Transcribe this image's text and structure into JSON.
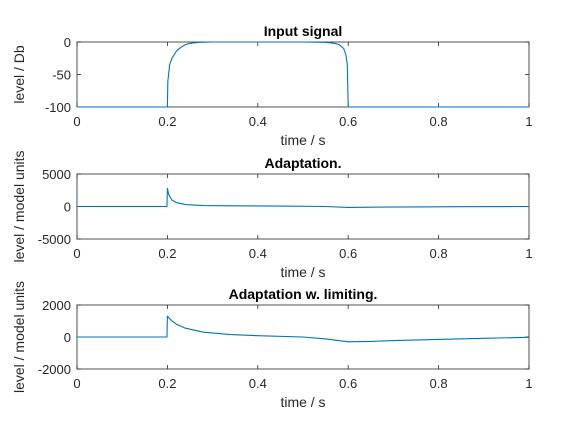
{
  "chart_data": [
    {
      "type": "line",
      "title": "Input signal",
      "xlabel": "time / s",
      "ylabel": "level / Db",
      "xlim": [
        0,
        1
      ],
      "ylim": [
        -100,
        0
      ],
      "xticks": [
        0,
        0.2,
        0.4,
        0.6,
        0.8,
        1
      ],
      "yticks": [
        -100,
        -50,
        0
      ],
      "grid": false,
      "series": [
        {
          "color": "#0072BD",
          "points": [
            [
              0,
              -100
            ],
            [
              0.199,
              -100
            ],
            [
              0.2,
              -100
            ],
            [
              0.201,
              -60
            ],
            [
              0.205,
              -35
            ],
            [
              0.21,
              -25
            ],
            [
              0.22,
              -14
            ],
            [
              0.23,
              -8
            ],
            [
              0.24,
              -4
            ],
            [
              0.25,
              -2
            ],
            [
              0.27,
              -0.5
            ],
            [
              0.3,
              0
            ],
            [
              0.5,
              0
            ],
            [
              0.55,
              -0.5
            ],
            [
              0.57,
              -2
            ],
            [
              0.58,
              -4
            ],
            [
              0.59,
              -10
            ],
            [
              0.595,
              -20
            ],
            [
              0.598,
              -35
            ],
            [
              0.6,
              -100
            ],
            [
              1,
              -100
            ]
          ]
        }
      ]
    },
    {
      "type": "line",
      "title": "Adaptation.",
      "xlabel": "time / s",
      "ylabel": "level / model units",
      "xlim": [
        0,
        1
      ],
      "ylim": [
        -5000,
        5000
      ],
      "xticks": [
        0,
        0.2,
        0.4,
        0.6,
        0.8,
        1
      ],
      "yticks": [
        -5000,
        0,
        5000
      ],
      "grid": false,
      "series": [
        {
          "color": "#0072BD",
          "points": [
            [
              0,
              0
            ],
            [
              0.199,
              0
            ],
            [
              0.2,
              2800
            ],
            [
              0.203,
              1800
            ],
            [
              0.21,
              1000
            ],
            [
              0.22,
              600
            ],
            [
              0.24,
              300
            ],
            [
              0.28,
              150
            ],
            [
              0.35,
              100
            ],
            [
              0.45,
              60
            ],
            [
              0.55,
              0
            ],
            [
              0.6,
              -150
            ],
            [
              0.65,
              -100
            ],
            [
              0.75,
              -60
            ],
            [
              0.85,
              -30
            ],
            [
              1,
              0
            ]
          ]
        }
      ]
    },
    {
      "type": "line",
      "title": "Adaptation w. limiting.",
      "xlabel": "time / s",
      "ylabel": "level / model units",
      "xlim": [
        0,
        1
      ],
      "ylim": [
        -2000,
        2000
      ],
      "xticks": [
        0,
        0.2,
        0.4,
        0.6,
        0.8,
        1
      ],
      "yticks": [
        -2000,
        0,
        2000
      ],
      "grid": false,
      "series": [
        {
          "color": "#0072BD",
          "points": [
            [
              0,
              0
            ],
            [
              0.199,
              0
            ],
            [
              0.2,
              1300
            ],
            [
              0.21,
              1000
            ],
            [
              0.22,
              800
            ],
            [
              0.24,
              550
            ],
            [
              0.28,
              300
            ],
            [
              0.34,
              150
            ],
            [
              0.4,
              80
            ],
            [
              0.5,
              0
            ],
            [
              0.55,
              -120
            ],
            [
              0.6,
              -300
            ],
            [
              0.65,
              -280
            ],
            [
              0.7,
              -220
            ],
            [
              0.8,
              -150
            ],
            [
              0.9,
              -80
            ],
            [
              1,
              -20
            ]
          ]
        }
      ]
    }
  ]
}
